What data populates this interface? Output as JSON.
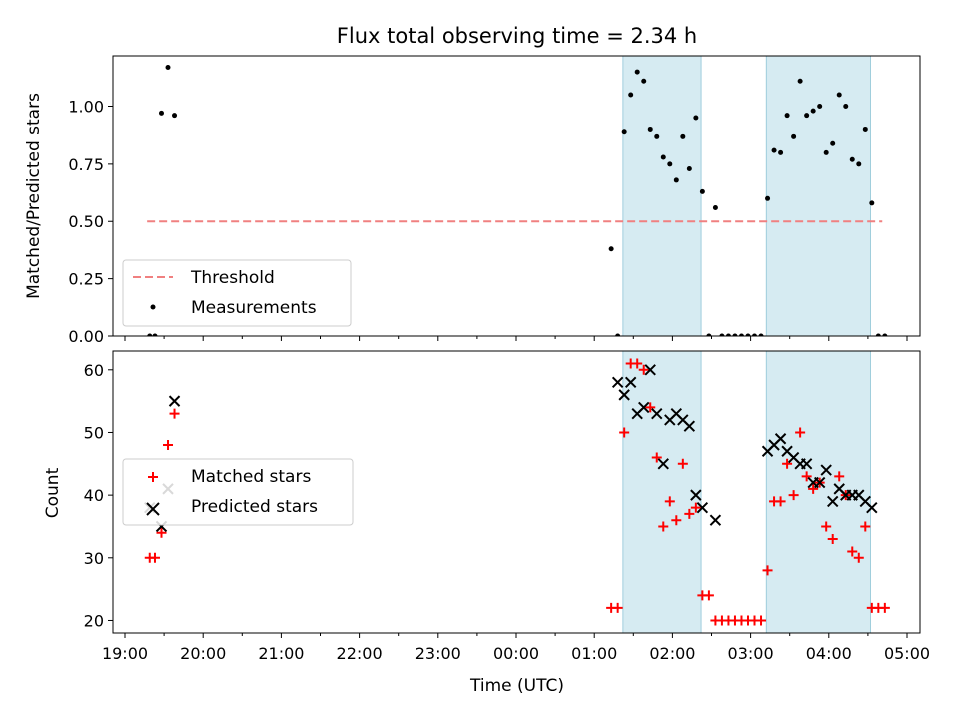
{
  "chart_data": [
    {
      "type": "scatter",
      "title": "Flux total observing time = 2.34 h",
      "xlabel": "",
      "ylabel": "Matched/Predicted stars",
      "xlim": [
        "19:00",
        "05:00"
      ],
      "ylim": [
        0.0,
        1.22
      ],
      "y_ticks": [
        0.0,
        0.25,
        0.5,
        0.75,
        1.0
      ],
      "y_tick_labels": [
        "0.00",
        "0.25",
        "0.50",
        "0.75",
        "1.00"
      ],
      "legend_position": "lower-left",
      "shaded_intervals": [
        [
          "01:22",
          "02:22"
        ],
        [
          "03:12",
          "04:32"
        ]
      ],
      "threshold": {
        "name": "Threshold",
        "value": 0.5,
        "x_range": [
          "19:17",
          "04:41"
        ],
        "color": "#f08080"
      },
      "series": [
        {
          "name": "Measurements",
          "color": "#000000",
          "points": [
            [
              "19:19",
              0.0
            ],
            [
              "19:23",
              0.0
            ],
            [
              "19:28",
              0.97
            ],
            [
              "19:33",
              1.17
            ],
            [
              "19:38",
              0.96
            ],
            [
              "01:13",
              0.38
            ],
            [
              "01:18",
              0.0
            ],
            [
              "01:23",
              0.89
            ],
            [
              "01:28",
              1.05
            ],
            [
              "01:33",
              1.15
            ],
            [
              "01:38",
              1.11
            ],
            [
              "01:43",
              0.9
            ],
            [
              "01:48",
              0.87
            ],
            [
              "01:53",
              0.78
            ],
            [
              "01:58",
              0.75
            ],
            [
              "02:03",
              0.68
            ],
            [
              "02:08",
              0.87
            ],
            [
              "02:13",
              0.73
            ],
            [
              "02:18",
              0.95
            ],
            [
              "02:23",
              0.63
            ],
            [
              "02:28",
              0.0
            ],
            [
              "02:33",
              0.56
            ],
            [
              "02:38",
              0.0
            ],
            [
              "02:43",
              0.0
            ],
            [
              "02:48",
              0.0
            ],
            [
              "02:53",
              0.0
            ],
            [
              "02:58",
              0.0
            ],
            [
              "03:03",
              0.0
            ],
            [
              "03:08",
              0.0
            ],
            [
              "03:13",
              0.6
            ],
            [
              "03:18",
              0.81
            ],
            [
              "03:23",
              0.8
            ],
            [
              "03:28",
              0.96
            ],
            [
              "03:33",
              0.87
            ],
            [
              "03:38",
              1.11
            ],
            [
              "03:43",
              0.96
            ],
            [
              "03:48",
              0.98
            ],
            [
              "03:53",
              1.0
            ],
            [
              "03:58",
              0.8
            ],
            [
              "04:03",
              0.84
            ],
            [
              "04:08",
              1.05
            ],
            [
              "04:13",
              1.0
            ],
            [
              "04:18",
              0.77
            ],
            [
              "04:23",
              0.75
            ],
            [
              "04:28",
              0.9
            ],
            [
              "04:33",
              0.58
            ],
            [
              "04:38",
              0.0
            ],
            [
              "04:43",
              0.0
            ]
          ]
        }
      ]
    },
    {
      "type": "scatter",
      "title": "",
      "xlabel": "Time (UTC)",
      "ylabel": "Count",
      "xlim": [
        "19:00",
        "05:00"
      ],
      "ylim": [
        18,
        63
      ],
      "y_ticks": [
        20,
        30,
        40,
        50,
        60
      ],
      "x_ticks": [
        "19:00",
        "20:00",
        "21:00",
        "22:00",
        "23:00",
        "00:00",
        "01:00",
        "02:00",
        "03:00",
        "04:00",
        "05:00"
      ],
      "legend_position": "center-left",
      "shaded_intervals": [
        [
          "01:22",
          "02:22"
        ],
        [
          "03:12",
          "04:32"
        ]
      ],
      "series": [
        {
          "name": "Matched stars",
          "marker": "plus",
          "color": "#ff0000",
          "points": [
            [
              "19:19",
              30
            ],
            [
              "19:23",
              30
            ],
            [
              "19:28",
              34
            ],
            [
              "19:33",
              48
            ],
            [
              "19:38",
              53
            ],
            [
              "01:13",
              22
            ],
            [
              "01:18",
              22
            ],
            [
              "01:23",
              50
            ],
            [
              "01:28",
              61
            ],
            [
              "01:33",
              61
            ],
            [
              "01:38",
              60
            ],
            [
              "01:43",
              54
            ],
            [
              "01:48",
              46
            ],
            [
              "01:53",
              35
            ],
            [
              "01:58",
              39
            ],
            [
              "02:03",
              36
            ],
            [
              "02:08",
              45
            ],
            [
              "02:13",
              37
            ],
            [
              "02:18",
              38
            ],
            [
              "02:23",
              24
            ],
            [
              "02:28",
              24
            ],
            [
              "02:33",
              20
            ],
            [
              "02:38",
              20
            ],
            [
              "02:43",
              20
            ],
            [
              "02:48",
              20
            ],
            [
              "02:53",
              20
            ],
            [
              "02:58",
              20
            ],
            [
              "03:03",
              20
            ],
            [
              "03:08",
              20
            ],
            [
              "03:13",
              28
            ],
            [
              "03:18",
              39
            ],
            [
              "03:23",
              39
            ],
            [
              "03:28",
              45
            ],
            [
              "03:33",
              40
            ],
            [
              "03:38",
              50
            ],
            [
              "03:43",
              43
            ],
            [
              "03:48",
              41
            ],
            [
              "03:53",
              42
            ],
            [
              "03:58",
              35
            ],
            [
              "04:03",
              33
            ],
            [
              "04:08",
              43
            ],
            [
              "04:13",
              40
            ],
            [
              "04:18",
              31
            ],
            [
              "04:23",
              30
            ],
            [
              "04:28",
              35
            ],
            [
              "04:33",
              22
            ],
            [
              "04:38",
              22
            ],
            [
              "04:43",
              22
            ]
          ]
        },
        {
          "name": "Predicted stars",
          "marker": "x",
          "color": "#000000",
          "points": [
            [
              "19:19",
              38
            ],
            [
              "19:28",
              35
            ],
            [
              "19:33",
              41
            ],
            [
              "19:38",
              55
            ],
            [
              "01:18",
              58
            ],
            [
              "01:23",
              56
            ],
            [
              "01:28",
              58
            ],
            [
              "01:33",
              53
            ],
            [
              "01:38",
              54
            ],
            [
              "01:43",
              60
            ],
            [
              "01:48",
              53
            ],
            [
              "01:53",
              45
            ],
            [
              "01:58",
              52
            ],
            [
              "02:03",
              53
            ],
            [
              "02:08",
              52
            ],
            [
              "02:13",
              51
            ],
            [
              "02:18",
              40
            ],
            [
              "02:23",
              38
            ],
            [
              "02:33",
              36
            ],
            [
              "03:13",
              47
            ],
            [
              "03:18",
              48
            ],
            [
              "03:23",
              49
            ],
            [
              "03:28",
              47
            ],
            [
              "03:33",
              46
            ],
            [
              "03:38",
              45
            ],
            [
              "03:43",
              45
            ],
            [
              "03:48",
              42
            ],
            [
              "03:53",
              42
            ],
            [
              "03:58",
              44
            ],
            [
              "04:03",
              39
            ],
            [
              "04:08",
              41
            ],
            [
              "04:13",
              40
            ],
            [
              "04:18",
              40
            ],
            [
              "04:23",
              40
            ],
            [
              "04:28",
              39
            ],
            [
              "04:33",
              38
            ]
          ]
        }
      ]
    }
  ]
}
